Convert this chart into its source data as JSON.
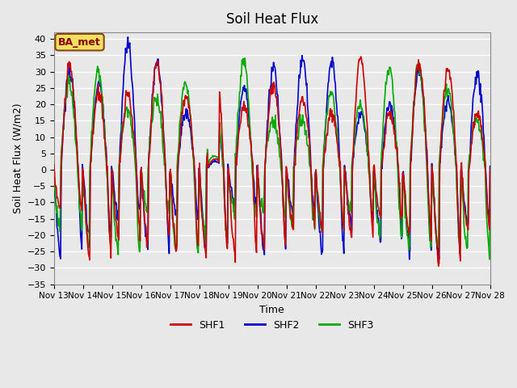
{
  "title": "Soil Heat Flux",
  "ylabel": "Soil Heat Flux (W/m2)",
  "xlabel": "Time",
  "ylim": [
    -35,
    42
  ],
  "yticks": [
    -35,
    -30,
    -25,
    -20,
    -15,
    -10,
    -5,
    0,
    5,
    10,
    15,
    20,
    25,
    30,
    35,
    40
  ],
  "bg_color": "#e8e8e8",
  "plot_bg": "#e8e8e8",
  "grid_color": "white",
  "line_colors": {
    "SHF1": "#cc0000",
    "SHF2": "#0000cc",
    "SHF3": "#00aa00"
  },
  "legend_label": "BA_met",
  "xtick_labels": [
    "Nov 13",
    "Nov 14",
    "Nov 15",
    "Nov 16",
    "Nov 17",
    "Nov 18",
    "Nov 19",
    "Nov 20",
    "Nov 21",
    "Nov 22",
    "Nov 23",
    "Nov 24",
    "Nov 25",
    "Nov 26",
    "Nov 27",
    "Nov 28"
  ],
  "n_days": 15,
  "pts_per_day": 48
}
